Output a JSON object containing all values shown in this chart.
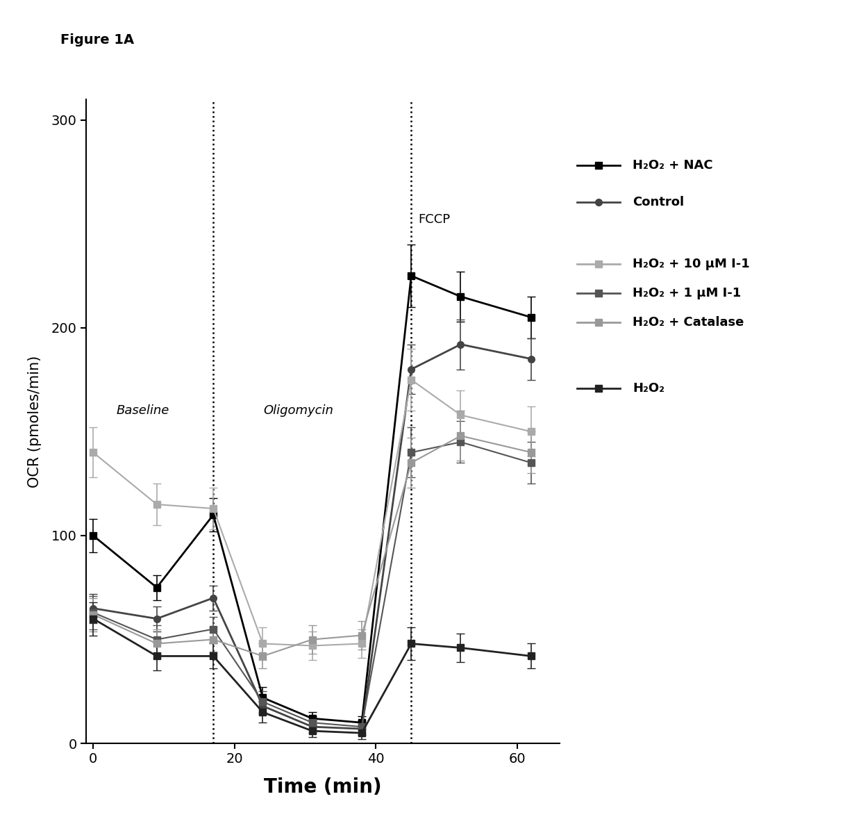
{
  "title": "Figure 1A",
  "xlabel": "Time (min)",
  "ylabel": "OCR (pmoles/min)",
  "xlim": [
    -1,
    66
  ],
  "ylim": [
    0,
    310
  ],
  "yticks": [
    0,
    100,
    200,
    300
  ],
  "xticks": [
    0,
    20,
    40,
    60
  ],
  "vlines": [
    17,
    45
  ],
  "baseline_label": "Baseline",
  "baseline_x": 7,
  "baseline_y": 160,
  "oligomycin_label": "Oligomycin",
  "oligomycin_x": 29,
  "oligomycin_y": 160,
  "fccp_label": "FCCP",
  "fccp_x": 46,
  "fccp_y": 252,
  "series": [
    {
      "name": "H₂O₂ + NAC",
      "color": "#000000",
      "marker": "s",
      "markersize": 7,
      "linewidth": 2.0,
      "x": [
        0,
        9,
        17,
        24,
        31,
        38,
        45,
        52,
        62
      ],
      "y": [
        100,
        75,
        110,
        22,
        12,
        10,
        225,
        215,
        205
      ],
      "yerr": [
        8,
        6,
        8,
        5,
        3,
        3,
        15,
        12,
        10
      ]
    },
    {
      "name": "Control",
      "color": "#444444",
      "marker": "o",
      "markersize": 7,
      "linewidth": 2.0,
      "x": [
        0,
        9,
        17,
        24,
        31,
        38,
        45,
        52,
        62
      ],
      "y": [
        65,
        60,
        70,
        18,
        8,
        7,
        180,
        192,
        185
      ],
      "yerr": [
        7,
        6,
        6,
        4,
        3,
        3,
        12,
        12,
        10
      ]
    },
    {
      "name": "H₂O₂ + 10 μM I-1",
      "color": "#aaaaaa",
      "marker": "s",
      "markersize": 7,
      "linewidth": 1.5,
      "x": [
        0,
        9,
        17,
        24,
        31,
        38,
        45,
        52,
        62
      ],
      "y": [
        140,
        115,
        113,
        48,
        47,
        48,
        175,
        158,
        150
      ],
      "yerr": [
        12,
        10,
        10,
        8,
        7,
        7,
        15,
        12,
        12
      ]
    },
    {
      "name": "H₂O₂ + 1 μM I-1",
      "color": "#555555",
      "marker": "s",
      "markersize": 7,
      "linewidth": 1.5,
      "x": [
        0,
        9,
        17,
        24,
        31,
        38,
        45,
        52,
        62
      ],
      "y": [
        63,
        50,
        55,
        20,
        10,
        8,
        140,
        145,
        135
      ],
      "yerr": [
        8,
        7,
        6,
        5,
        3,
        3,
        12,
        10,
        10
      ]
    },
    {
      "name": "H₂O₂ + Catalase",
      "color": "#999999",
      "marker": "s",
      "markersize": 7,
      "linewidth": 1.5,
      "x": [
        0,
        9,
        17,
        24,
        31,
        38,
        45,
        52,
        62
      ],
      "y": [
        62,
        48,
        50,
        42,
        50,
        52,
        135,
        148,
        140
      ],
      "yerr": [
        8,
        7,
        6,
        6,
        7,
        7,
        12,
        12,
        10
      ]
    },
    {
      "name": "H₂O₂",
      "color": "#222222",
      "marker": "s",
      "markersize": 7,
      "linewidth": 2.0,
      "x": [
        0,
        9,
        17,
        24,
        31,
        38,
        45,
        52,
        62
      ],
      "y": [
        60,
        42,
        42,
        15,
        6,
        5,
        48,
        46,
        42
      ],
      "yerr": [
        8,
        7,
        6,
        5,
        3,
        3,
        8,
        7,
        6
      ]
    }
  ],
  "legend_entries": [
    {
      "name": "H₂O₂ + NAC",
      "color": "#000000",
      "marker": "s",
      "gap_after": false
    },
    {
      "name": "Control",
      "color": "#444444",
      "marker": "o",
      "gap_after": true
    },
    {
      "name": "H₂O₂ + 10 μM I-1",
      "color": "#aaaaaa",
      "marker": "s",
      "gap_after": false
    },
    {
      "name": "H₂O₂ + 1 μM I-1",
      "color": "#555555",
      "marker": "s",
      "gap_after": false
    },
    {
      "name": "H₂O₂ + Catalase",
      "color": "#999999",
      "marker": "s",
      "gap_after": true
    },
    {
      "name": "H₂O₂",
      "color": "#222222",
      "marker": "s",
      "gap_after": false
    }
  ]
}
